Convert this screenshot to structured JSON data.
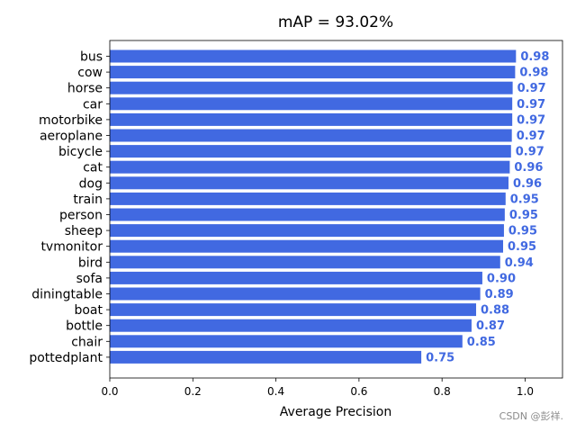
{
  "chart_data": {
    "type": "bar",
    "orientation": "horizontal",
    "title": "mAP = 93.02%",
    "xlabel": "Average Precision",
    "ylabel": "",
    "xlim": [
      0,
      1.09
    ],
    "xticks": [
      "0.0",
      "0.2",
      "0.4",
      "0.6",
      "0.8",
      "1.0"
    ],
    "bar_color": "#4169e1",
    "label_color": "#4169e1",
    "grid": false,
    "categories": [
      "bus",
      "cow",
      "horse",
      "car",
      "motorbike",
      "aeroplane",
      "bicycle",
      "cat",
      "dog",
      "train",
      "person",
      "sheep",
      "tvmonitor",
      "bird",
      "sofa",
      "diningtable",
      "boat",
      "bottle",
      "chair",
      "pottedplant"
    ],
    "values": [
      0.978,
      0.976,
      0.97,
      0.969,
      0.969,
      0.968,
      0.966,
      0.963,
      0.96,
      0.953,
      0.951,
      0.949,
      0.947,
      0.94,
      0.897,
      0.892,
      0.882,
      0.871,
      0.849,
      0.75
    ],
    "value_labels": [
      "0.98",
      "0.98",
      "0.97",
      "0.97",
      "0.97",
      "0.97",
      "0.97",
      "0.96",
      "0.96",
      "0.95",
      "0.95",
      "0.95",
      "0.95",
      "0.94",
      "0.90",
      "0.89",
      "0.88",
      "0.87",
      "0.85",
      "0.75"
    ]
  },
  "watermark": "CSDN @彭祥."
}
